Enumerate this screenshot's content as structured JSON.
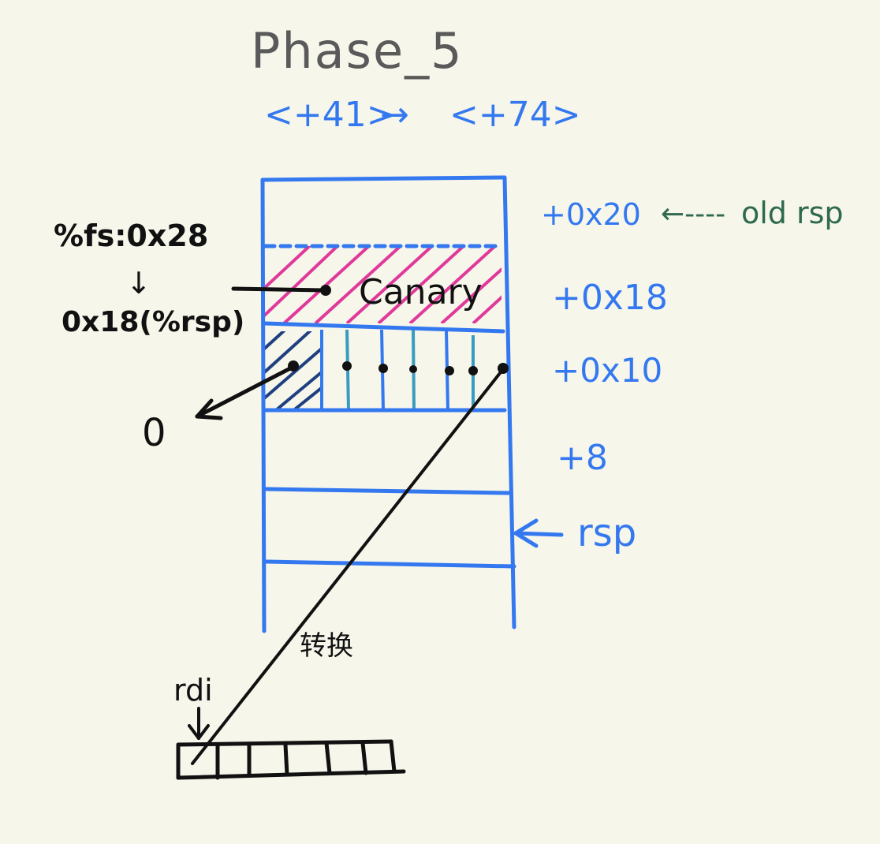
{
  "title": "Phase_5",
  "subtitle": {
    "from": "<+41>",
    "arrow": "→",
    "to": "<+74>"
  },
  "colors": {
    "blue": "#3478f0",
    "green": "#2f6a4f",
    "black": "#111111",
    "pink": "#e0399a",
    "navy": "#1f3f7f",
    "teal": "#3a9bc0",
    "gray": "#5a5a5a",
    "background": "#f6f6eb"
  },
  "stack": {
    "offsets": {
      "off_20": "+0x20",
      "off_18": "+0x18",
      "off_10": "+0x10",
      "off_8": "+8"
    },
    "old_rsp_arrow": "←----",
    "old_rsp_label": "old rsp",
    "rsp_label": "rsp",
    "canary_label": "Canary"
  },
  "annotations": {
    "fs_source": "%fs:0x28",
    "fs_arrow": "↓",
    "fs_dest": "0x18(%rsp)",
    "zero_value": "0",
    "convert_label": "转换",
    "rdi_label": "rdi"
  },
  "icons": [
    "left-arrow-icon",
    "down-arrow-icon",
    "right-arrow-icon"
  ]
}
